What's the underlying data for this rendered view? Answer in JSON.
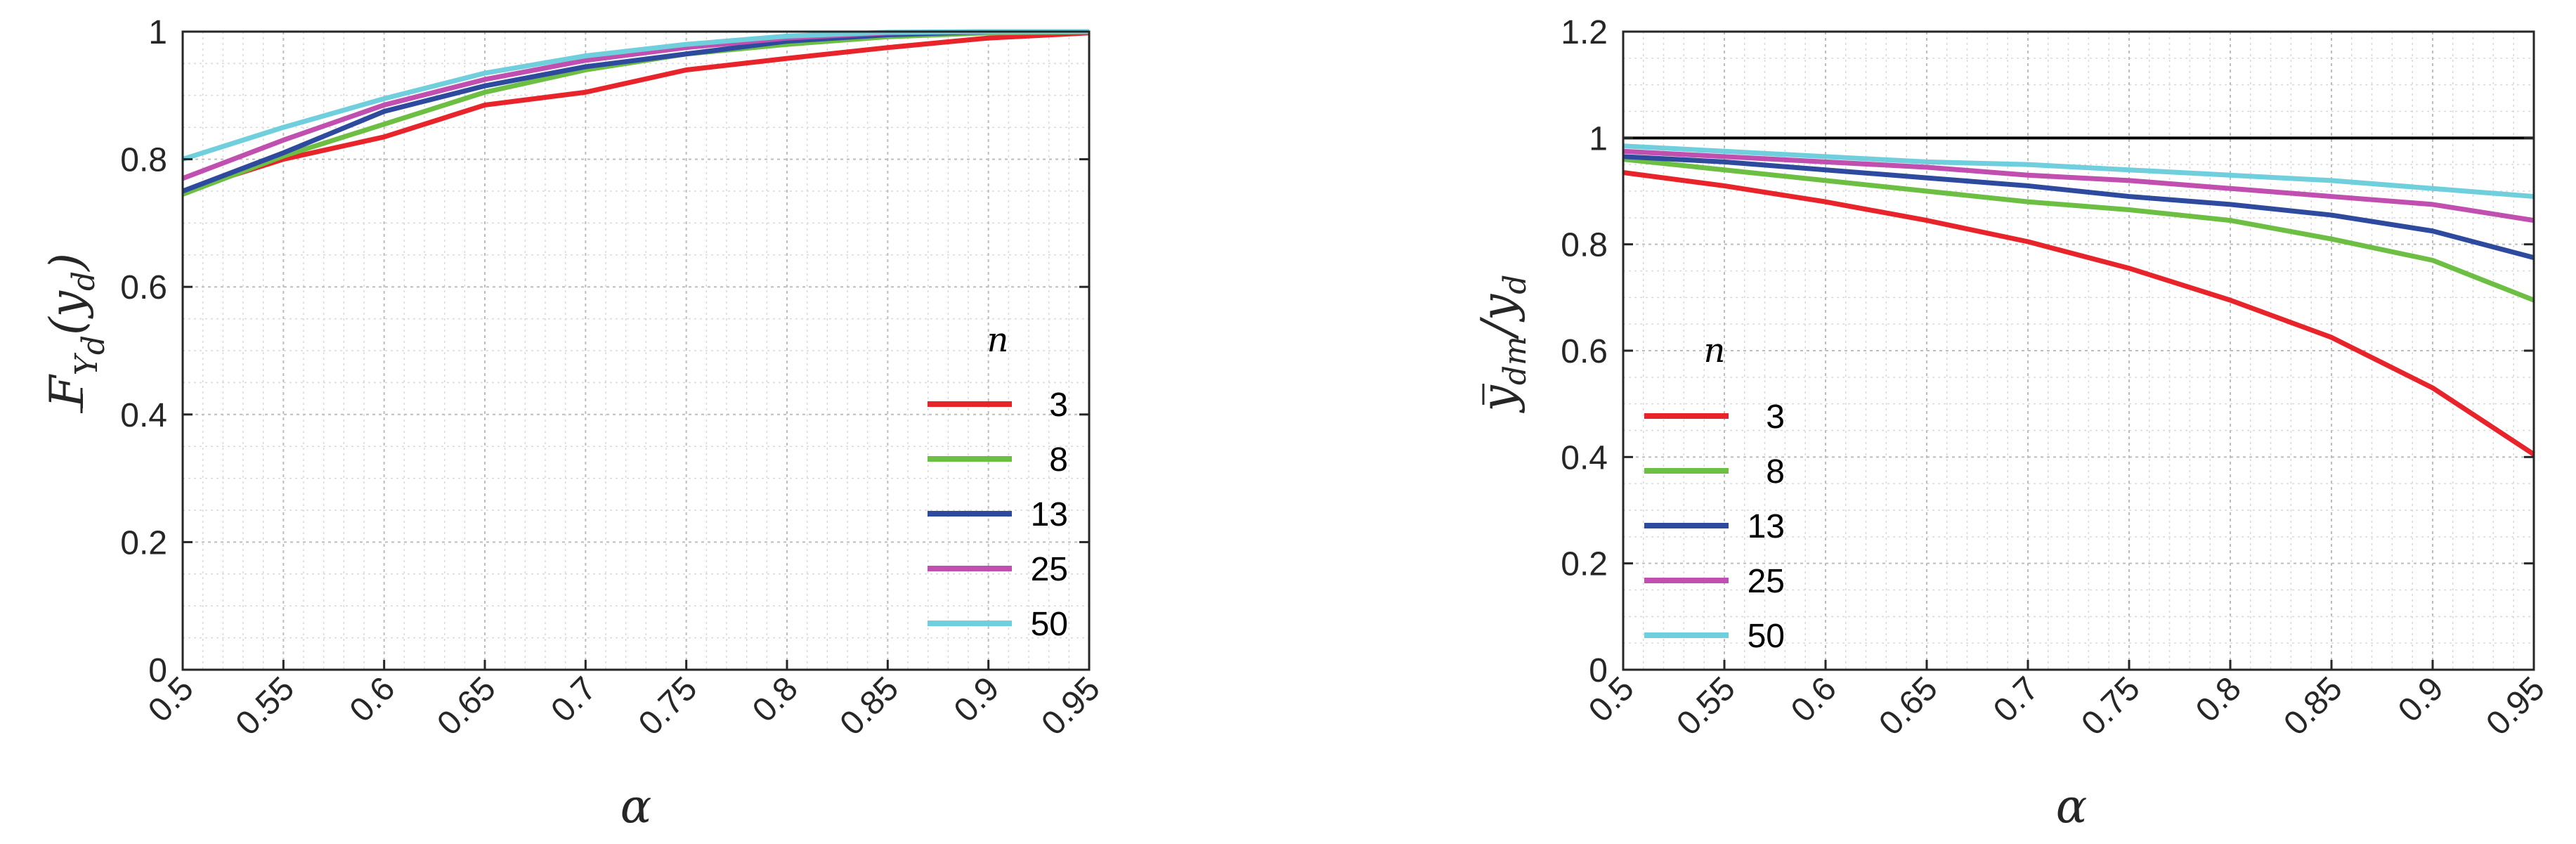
{
  "chart_data": [
    {
      "type": "line",
      "ylabel": "F_{\\overline{Y}_d}(y_d)",
      "xlabel": "α",
      "xlim": [
        0.5,
        0.95
      ],
      "ylim": [
        0,
        1
      ],
      "x": [
        0.5,
        0.55,
        0.6,
        0.65,
        0.7,
        0.75,
        0.8,
        0.85,
        0.9,
        0.95
      ],
      "xtick_labels": [
        "0.5",
        "0.55",
        "0.6",
        "0.65",
        "0.7",
        "0.75",
        "0.8",
        "0.85",
        "0.9",
        "0.95"
      ],
      "yticks": [
        0,
        0.2,
        0.4,
        0.6,
        0.8,
        1
      ],
      "ytick_labels": [
        "0",
        "0.2",
        "0.4",
        "0.6",
        "0.8",
        "1"
      ],
      "grid": "on (major and minor, dotted)",
      "legend": {
        "title": "n",
        "placement": "lower-right"
      },
      "series": [
        {
          "name": "3",
          "color": "#e8232a",
          "values": [
            0.75,
            0.8,
            0.835,
            0.885,
            0.905,
            0.94,
            0.958,
            0.975,
            0.99,
            0.998
          ]
        },
        {
          "name": "8",
          "color": "#6cbf43",
          "values": [
            0.745,
            0.805,
            0.855,
            0.905,
            0.94,
            0.965,
            0.98,
            0.992,
            0.998,
            1.0
          ]
        },
        {
          "name": "13",
          "color": "#2e4a9e",
          "values": [
            0.75,
            0.81,
            0.875,
            0.915,
            0.945,
            0.965,
            0.985,
            0.995,
            1.0,
            1.0
          ]
        },
        {
          "name": "25",
          "color": "#c04fb0",
          "values": [
            0.77,
            0.83,
            0.885,
            0.925,
            0.955,
            0.975,
            0.99,
            0.998,
            1.0,
            1.0
          ]
        },
        {
          "name": "50",
          "color": "#6fcfdd",
          "values": [
            0.8,
            0.85,
            0.895,
            0.935,
            0.962,
            0.98,
            0.993,
            0.999,
            1.0,
            1.0
          ]
        }
      ]
    },
    {
      "type": "line",
      "ylabel": "\\overline{y}_{dm}/y_d",
      "xlabel": "α",
      "xlim": [
        0.5,
        0.95
      ],
      "ylim": [
        0,
        1.2
      ],
      "x": [
        0.5,
        0.55,
        0.6,
        0.65,
        0.7,
        0.75,
        0.8,
        0.85,
        0.9,
        0.95
      ],
      "xtick_labels": [
        "0.5",
        "0.55",
        "0.6",
        "0.65",
        "0.7",
        "0.75",
        "0.8",
        "0.85",
        "0.9",
        "0.95"
      ],
      "yticks": [
        0,
        0.2,
        0.4,
        0.6,
        0.8,
        1,
        1.2
      ],
      "ytick_labels": [
        "0",
        "0.2",
        "0.4",
        "0.6",
        "0.8",
        "1",
        "1.2"
      ],
      "grid": "on (major and minor, dotted)",
      "reference_line": {
        "y": 1,
        "color": "#000000"
      },
      "legend": {
        "title": "n",
        "placement": "lower-left"
      },
      "series": [
        {
          "name": "3",
          "color": "#e8232a",
          "values": [
            0.935,
            0.91,
            0.88,
            0.845,
            0.805,
            0.755,
            0.695,
            0.625,
            0.53,
            0.405
          ]
        },
        {
          "name": "8",
          "color": "#6cbf43",
          "values": [
            0.96,
            0.94,
            0.92,
            0.9,
            0.88,
            0.865,
            0.845,
            0.81,
            0.77,
            0.695
          ]
        },
        {
          "name": "13",
          "color": "#2e4a9e",
          "values": [
            0.965,
            0.955,
            0.94,
            0.925,
            0.91,
            0.89,
            0.875,
            0.855,
            0.825,
            0.775
          ]
        },
        {
          "name": "25",
          "color": "#c04fb0",
          "values": [
            0.975,
            0.965,
            0.955,
            0.945,
            0.93,
            0.92,
            0.905,
            0.89,
            0.875,
            0.845
          ]
        },
        {
          "name": "50",
          "color": "#6fcfdd",
          "values": [
            0.985,
            0.975,
            0.965,
            0.955,
            0.95,
            0.94,
            0.93,
            0.92,
            0.905,
            0.89
          ]
        }
      ]
    }
  ]
}
